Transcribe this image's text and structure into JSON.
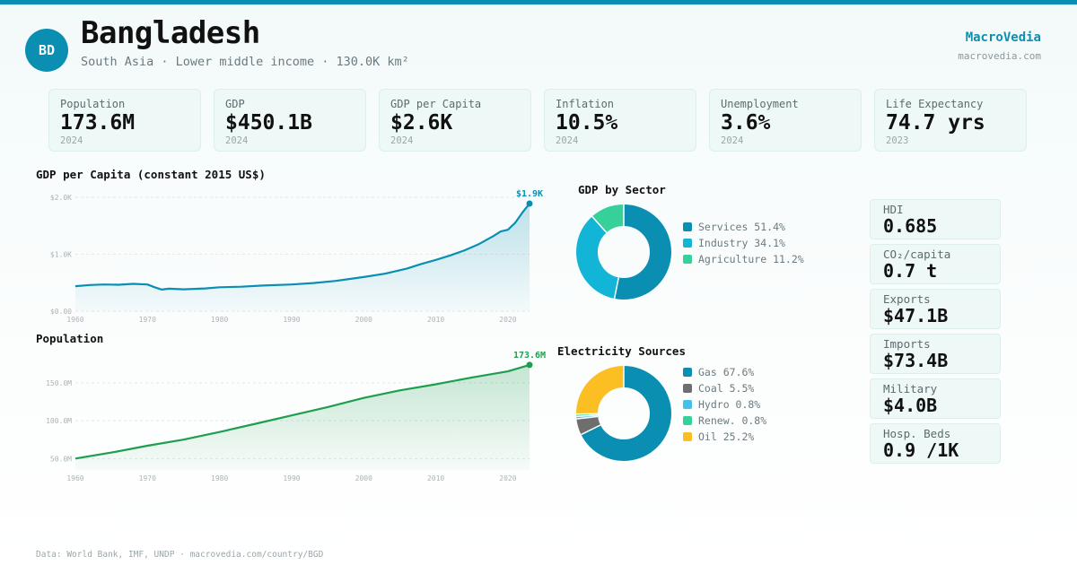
{
  "header": {
    "badge": "BD",
    "country": "Bangladesh",
    "subtitle": "South Asia · Lower middle income · 130.0K km²",
    "brand": "MacroVedia",
    "brand_url": "macrovedia.com"
  },
  "stats": [
    {
      "label": "Population",
      "value": "173.6M",
      "year": "2024"
    },
    {
      "label": "GDP",
      "value": "$450.1B",
      "year": "2024"
    },
    {
      "label": "GDP per Capita",
      "value": "$2.6K",
      "year": "2024"
    },
    {
      "label": "Inflation",
      "value": "10.5%",
      "year": "2024"
    },
    {
      "label": "Unemployment",
      "value": "3.6%",
      "year": "2024"
    },
    {
      "label": "Life Expectancy",
      "value": "74.7 yrs",
      "year": "2023"
    }
  ],
  "side_stats": [
    {
      "label": "HDI",
      "value": "0.685"
    },
    {
      "label": "CO₂/capita",
      "value": "0.7 t"
    },
    {
      "label": "Exports",
      "value": "$47.1B"
    },
    {
      "label": "Imports",
      "value": "$73.4B"
    },
    {
      "label": "Military",
      "value": "$4.0B"
    },
    {
      "label": "Hosp. Beds",
      "value": "0.9 /1K"
    }
  ],
  "footer": "Data: World Bank, IMF, UNDP · macrovedia.com/country/BGD",
  "colors": {
    "accent": "#0a8fb3",
    "gdp_line": "#0a8fb3",
    "pop_line": "#1e9e4e",
    "services": "#0a8fb3",
    "industry": "#12b5d6",
    "agriculture": "#36d19b",
    "gas": "#0a8fb3",
    "coal": "#6e6e6e",
    "hydro": "#45c0e8",
    "renew": "#36d19b",
    "oil": "#fbbf24"
  },
  "chart_data": [
    {
      "id": "gdp_per_capita",
      "type": "area",
      "title": "GDP per Capita (constant 2015 US$)",
      "end_label": "$1.9K",
      "x": [
        1960,
        1962,
        1964,
        1966,
        1968,
        1970,
        1971,
        1972,
        1973,
        1975,
        1978,
        1980,
        1983,
        1986,
        1990,
        1993,
        1996,
        2000,
        2003,
        2006,
        2008,
        2010,
        2012,
        2014,
        2016,
        2018,
        2019,
        2020,
        2021,
        2022,
        2023
      ],
      "y": [
        440,
        460,
        470,
        465,
        480,
        470,
        420,
        380,
        395,
        385,
        400,
        420,
        430,
        450,
        470,
        495,
        530,
        600,
        660,
        750,
        830,
        900,
        980,
        1070,
        1180,
        1320,
        1400,
        1430,
        1550,
        1730,
        1890
      ],
      "xticks": [
        1960,
        1970,
        1980,
        1990,
        2000,
        2010,
        2020
      ],
      "yticks": [
        0,
        1000,
        2000
      ],
      "ytick_labels": [
        "$0.00",
        "$1.0K",
        "$2.0K"
      ],
      "ylim": [
        0,
        2000
      ],
      "xlim": [
        1960,
        2023
      ]
    },
    {
      "id": "population",
      "type": "area",
      "title": "Population",
      "end_label": "173.6M",
      "x": [
        1960,
        1965,
        1970,
        1975,
        1980,
        1985,
        1990,
        1995,
        2000,
        2005,
        2010,
        2015,
        2020,
        2023
      ],
      "y": [
        50,
        58,
        67,
        75,
        85,
        96,
        107,
        118,
        130,
        140,
        148,
        157,
        165,
        173.6
      ],
      "xticks": [
        1960,
        1970,
        1980,
        1990,
        2000,
        2010,
        2020
      ],
      "yticks": [
        50,
        100,
        150
      ],
      "ytick_labels": [
        "50.0M",
        "100.0M",
        "150.0M"
      ],
      "ylim": [
        35,
        177
      ],
      "xlim": [
        1960,
        2023
      ]
    },
    {
      "id": "gdp_by_sector",
      "type": "pie",
      "title": "GDP by Sector",
      "labels": [
        "Services",
        "Industry",
        "Agriculture"
      ],
      "values": [
        51.4,
        34.1,
        11.2
      ],
      "legend": [
        "Services 51.4%",
        "Industry 34.1%",
        "Agriculture 11.2%"
      ],
      "color_keys": [
        "services",
        "industry",
        "agriculture"
      ]
    },
    {
      "id": "electricity_sources",
      "type": "pie",
      "title": "Electricity Sources",
      "labels": [
        "Gas",
        "Coal",
        "Hydro",
        "Renew.",
        "Oil"
      ],
      "values": [
        67.6,
        5.5,
        0.8,
        0.8,
        25.2
      ],
      "legend": [
        "Gas 67.6%",
        "Coal 5.5%",
        "Hydro 0.8%",
        "Renew. 0.8%",
        "Oil 25.2%"
      ],
      "color_keys": [
        "gas",
        "coal",
        "hydro",
        "renew",
        "oil"
      ]
    }
  ]
}
